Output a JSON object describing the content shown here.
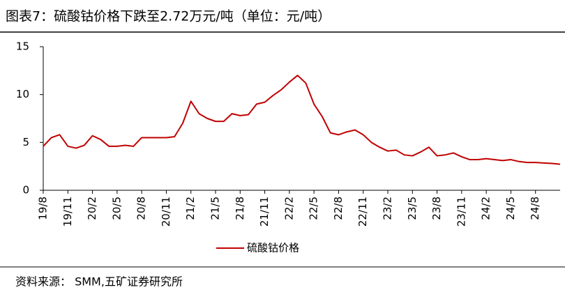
{
  "title": "图表7：硫酸钴价格下跌至2.72万元/吨（单位：元/吨）",
  "source": "资料来源： SMM,五矿证券研究所",
  "chart_data": {
    "type": "line",
    "categories": [
      "19/8",
      null,
      null,
      "19/11",
      null,
      null,
      "20/2",
      null,
      null,
      "20/5",
      null,
      null,
      "20/8",
      null,
      null,
      "20/11",
      null,
      null,
      "21/2",
      null,
      null,
      "21/5",
      null,
      null,
      "21/8",
      null,
      null,
      "21/11",
      null,
      null,
      "22/2",
      null,
      null,
      "22/5",
      null,
      null,
      "22/8",
      null,
      null,
      "22/11",
      null,
      null,
      "23/2",
      null,
      null,
      "23/5",
      null,
      null,
      "23/8",
      null,
      null,
      "23/11",
      null,
      null,
      "24/2",
      null,
      null,
      "24/5",
      null,
      null,
      "24/8",
      null,
      null,
      null
    ],
    "series": [
      {
        "name": "硫酸钴价格",
        "color": "#c00000",
        "values": [
          4.6,
          5.5,
          5.8,
          4.6,
          4.4,
          4.7,
          5.7,
          5.3,
          4.6,
          4.6,
          4.7,
          4.6,
          5.5,
          5.5,
          5.5,
          5.5,
          5.6,
          7.0,
          9.3,
          8.0,
          7.5,
          7.2,
          7.2,
          8.0,
          7.8,
          7.9,
          9.0,
          9.2,
          9.9,
          10.5,
          11.3,
          12.0,
          11.2,
          9.0,
          7.7,
          6.0,
          5.8,
          6.1,
          6.3,
          5.8,
          5.0,
          4.5,
          4.1,
          4.2,
          3.7,
          3.6,
          4.0,
          4.5,
          3.6,
          3.7,
          3.9,
          3.5,
          3.2,
          3.2,
          3.3,
          3.2,
          3.1,
          3.2,
          3.0,
          2.9,
          2.9,
          2.85,
          2.8,
          2.72
        ]
      }
    ],
    "ylim": [
      0,
      15
    ],
    "yticks": [
      0,
      5,
      10,
      15
    ]
  }
}
